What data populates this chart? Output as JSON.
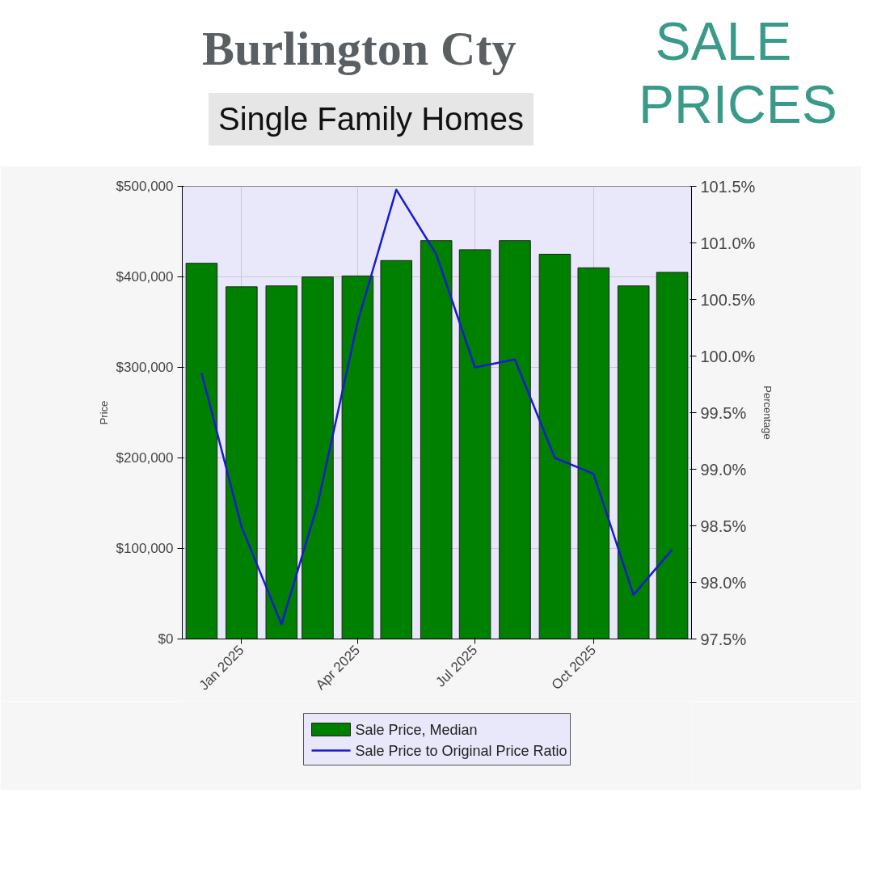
{
  "chart_data": {
    "type": "bar",
    "title": "Burlington Cty",
    "subtitle": "Single Family Homes",
    "annotations": [
      "SALE PRICES"
    ],
    "xlabel": null,
    "ylabel": "Price",
    "y2label": "Percentage",
    "x": [
      "2024-12",
      "2025-01",
      "2025-02",
      "2025-03",
      "2025-04",
      "2025-05",
      "2025-06",
      "2025-07",
      "2025-08",
      "2025-09",
      "2025-10",
      "2025-11",
      "2025-12"
    ],
    "xlim": [
      "2024-11-16",
      "2025-12-16"
    ],
    "xticks": [
      {
        "value": "2025-01",
        "label": "Jan 2025"
      },
      {
        "value": "2025-04",
        "label": "Apr 2025"
      },
      {
        "value": "2025-07",
        "label": "Jul 2025"
      },
      {
        "value": "2025-10",
        "label": "Oct 2025"
      }
    ],
    "series": [
      {
        "name": "Sale Price, Median",
        "color": "#008000",
        "values": [
          415000,
          389000,
          390000,
          400000,
          401000,
          418000,
          440000,
          430000,
          440000,
          425000,
          410000,
          390000,
          405000
        ]
      },
      {
        "name": "Sale Price to Original Price Ratio",
        "type": "line",
        "axis": "y2",
        "color": "#1a1ad0",
        "values": [
          99.85,
          98.49,
          97.63,
          98.69,
          100.3,
          101.47,
          100.9,
          99.9,
          99.97,
          99.1,
          98.96,
          97.89,
          98.29
        ]
      }
    ],
    "ylim": [
      0,
      500000
    ],
    "yticks": [
      {
        "value": 0,
        "label": "$0"
      },
      {
        "value": 100000,
        "label": "$100,000"
      },
      {
        "value": 200000,
        "label": "$200,000"
      },
      {
        "value": 300000,
        "label": "$300,000"
      },
      {
        "value": 400000,
        "label": "$400,000"
      },
      {
        "value": 500000,
        "label": "$500,000"
      }
    ],
    "y2lim": [
      97.5,
      101.5
    ],
    "y2ticks": [
      {
        "value": 97.5,
        "label": "97.5%"
      },
      {
        "value": 98.0,
        "label": "98.0%"
      },
      {
        "value": 98.5,
        "label": "98.5%"
      },
      {
        "value": 99.0,
        "label": "99.0%"
      },
      {
        "value": 99.5,
        "label": "99.5%"
      },
      {
        "value": 100.0,
        "label": "100.0%"
      },
      {
        "value": 100.5,
        "label": "100.5%"
      },
      {
        "value": 101.0,
        "label": "101.0%"
      },
      {
        "value": 101.5,
        "label": "101.5%"
      }
    ],
    "grid": true,
    "legend": "bottom",
    "marker": "none",
    "line_style": "solid"
  }
}
